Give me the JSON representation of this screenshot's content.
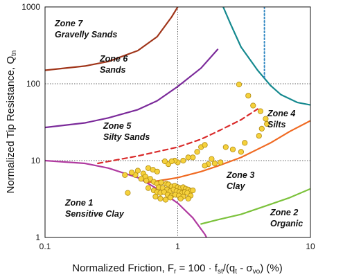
{
  "chart_data": {
    "type": "scatter",
    "xscale": "log",
    "yscale": "log",
    "xlim": [
      0.1,
      10
    ],
    "ylim": [
      1,
      1000
    ],
    "grid": "major decades, dotted",
    "xlabel": {
      "prefix": "Normalized Friction, F",
      "prefix_sub": "r",
      "mid1": " = 100 · f",
      "mid1_sub": "st",
      "mid2": "/(q",
      "mid2_sub": "t",
      "mid3": " - σ",
      "mid3_sub": "vo",
      "suffix": ")   (%)"
    },
    "ylabel": {
      "text": "Normalized Tip Resistance, Q",
      "sub": "tn"
    },
    "x_ticks": [
      "0.1",
      "1",
      "10"
    ],
    "y_ticks": [
      "1",
      "10",
      "100",
      "1000"
    ],
    "zones": [
      {
        "line1": "Zone 7",
        "line2": "Gravelly Sands"
      },
      {
        "line1": "Zone 6",
        "line2": "Sands"
      },
      {
        "line1": "Zone 5",
        "line2": "Silty Sands"
      },
      {
        "line1": "Zone 4",
        "line2": "Silts"
      },
      {
        "line1": "Zone 3",
        "line2": "Clay"
      },
      {
        "line1": "Zone 2",
        "line2": "Organic"
      },
      {
        "line1": "Zone 1",
        "line2": "Sensitive Clay"
      }
    ],
    "boundaries": [
      {
        "name": "zone7-boundary",
        "color": "#A0351A",
        "style": "solid",
        "points": [
          [
            0.1,
            150
          ],
          [
            0.2,
            170
          ],
          [
            0.3,
            195
          ],
          [
            0.5,
            270
          ],
          [
            0.7,
            410
          ],
          [
            0.9,
            740
          ],
          [
            1.0,
            1000
          ]
        ]
      },
      {
        "name": "zone6-boundary",
        "color": "#7B2A9A",
        "style": "solid",
        "points": [
          [
            0.1,
            27
          ],
          [
            0.2,
            31
          ],
          [
            0.3,
            36
          ],
          [
            0.5,
            46
          ],
          [
            0.7,
            60
          ],
          [
            1.0,
            92
          ],
          [
            1.5,
            160
          ],
          [
            2.0,
            280
          ]
        ]
      },
      {
        "name": "zone5-zone4-boundary",
        "color": "#D92A2A",
        "style": "dashed",
        "points": [
          [
            0.25,
            9.2
          ],
          [
            0.5,
            11.5
          ],
          [
            1.0,
            15
          ],
          [
            1.5,
            19
          ],
          [
            2.0,
            24
          ],
          [
            3.0,
            34
          ],
          [
            4.0,
            47
          ]
        ]
      },
      {
        "name": "zone3-boundary",
        "color": "#F06A22",
        "style": "solid",
        "points": [
          [
            0.6,
            5.2
          ],
          [
            1.0,
            6.0
          ],
          [
            1.5,
            7.2
          ],
          [
            2.0,
            8.5
          ],
          [
            3.0,
            11
          ],
          [
            5.0,
            17
          ],
          [
            7.0,
            24
          ],
          [
            10.0,
            33
          ]
        ]
      },
      {
        "name": "zone1-boundary",
        "color": "#B03AA0",
        "style": "solid",
        "points": [
          [
            0.1,
            10
          ],
          [
            0.2,
            9.2
          ],
          [
            0.3,
            8.0
          ],
          [
            0.5,
            6.0
          ],
          [
            0.7,
            4.3
          ],
          [
            1.0,
            2.8
          ],
          [
            1.3,
            1.8
          ],
          [
            1.6,
            1.1
          ],
          [
            1.65,
            1
          ]
        ]
      },
      {
        "name": "zone2-boundary",
        "color": "#7CC23C",
        "style": "solid",
        "points": [
          [
            1.5,
            1.5
          ],
          [
            2,
            1.7
          ],
          [
            3,
            2.0
          ],
          [
            5,
            2.7
          ],
          [
            7,
            3.3
          ],
          [
            10,
            4.3
          ],
          [
            14,
            6.2
          ]
        ]
      },
      {
        "name": "zone4-cap-boundary",
        "color": "#15898F",
        "style": "solid",
        "points": [
          [
            2.2,
            1000
          ],
          [
            2.5,
            600
          ],
          [
            3,
            300
          ],
          [
            4,
            150
          ],
          [
            5,
            95
          ],
          [
            6,
            72
          ],
          [
            8,
            57
          ],
          [
            10,
            53
          ]
        ]
      },
      {
        "name": "vertical-dotted-line",
        "color": "#2E86C1",
        "style": "dotted",
        "points": [
          [
            4.5,
            1000
          ],
          [
            4.5,
            120
          ]
        ]
      }
    ],
    "series": [
      {
        "marker_color": "#F5D13C",
        "points": [
          [
            2.9,
            98
          ],
          [
            3.4,
            70
          ],
          [
            3.7,
            52
          ],
          [
            4.2,
            44
          ],
          [
            4.6,
            35
          ],
          [
            4.7,
            30
          ],
          [
            4.3,
            26
          ],
          [
            4.1,
            21
          ],
          [
            3.2,
            17
          ],
          [
            3.0,
            13
          ],
          [
            2.3,
            15
          ],
          [
            2.6,
            14
          ],
          [
            1.5,
            15
          ],
          [
            1.6,
            16
          ],
          [
            1.4,
            13
          ],
          [
            1.3,
            11
          ],
          [
            1.2,
            11
          ],
          [
            1.1,
            10
          ],
          [
            1.0,
            9.5
          ],
          [
            0.95,
            10
          ],
          [
            0.85,
            9
          ],
          [
            0.9,
            9.8
          ],
          [
            1.8,
            10.5
          ],
          [
            1.7,
            9
          ],
          [
            1.9,
            9.2
          ],
          [
            1.6,
            8.6
          ],
          [
            2.1,
            9.5
          ],
          [
            0.8,
            9.8
          ],
          [
            0.6,
            8.0
          ],
          [
            0.65,
            7.6
          ],
          [
            0.7,
            7.2
          ],
          [
            0.55,
            6.8
          ],
          [
            0.5,
            7.4
          ],
          [
            0.48,
            6.5
          ],
          [
            0.45,
            7.0
          ],
          [
            0.57,
            6.2
          ],
          [
            0.62,
            5.8
          ],
          [
            0.53,
            5.8
          ],
          [
            0.58,
            5.5
          ],
          [
            0.66,
            5.3
          ],
          [
            0.7,
            5.0
          ],
          [
            0.75,
            5.2
          ],
          [
            0.82,
            5.0
          ],
          [
            0.85,
            4.9
          ],
          [
            0.9,
            4.6
          ],
          [
            0.95,
            4.7
          ],
          [
            1.0,
            4.5
          ],
          [
            1.05,
            4.4
          ],
          [
            1.1,
            4.5
          ],
          [
            1.15,
            4.3
          ],
          [
            1.2,
            4.2
          ],
          [
            1.25,
            4.0
          ],
          [
            1.3,
            4.1
          ],
          [
            0.72,
            4.5
          ],
          [
            0.77,
            4.4
          ],
          [
            0.83,
            4.2
          ],
          [
            0.88,
            4.0
          ],
          [
            0.93,
            4.2
          ],
          [
            0.98,
            4.0
          ],
          [
            1.03,
            3.9
          ],
          [
            1.08,
            3.8
          ],
          [
            1.13,
            3.9
          ],
          [
            1.18,
            3.8
          ],
          [
            0.6,
            4.4
          ],
          [
            0.66,
            4.1
          ],
          [
            0.7,
            3.9
          ],
          [
            0.74,
            3.8
          ],
          [
            0.79,
            3.9
          ],
          [
            0.84,
            3.6
          ],
          [
            0.9,
            3.5
          ],
          [
            0.96,
            3.6
          ],
          [
            1.02,
            3.5
          ],
          [
            1.1,
            3.4
          ],
          [
            1.25,
            3.5
          ],
          [
            0.68,
            3.4
          ],
          [
            0.74,
            3.2
          ],
          [
            0.81,
            3.1
          ],
          [
            0.88,
            3.3
          ],
          [
            0.42,
            3.8
          ],
          [
            0.4,
            6.5
          ],
          [
            1.2,
            3.2
          ],
          [
            1.05,
            3.2
          ]
        ]
      }
    ]
  }
}
